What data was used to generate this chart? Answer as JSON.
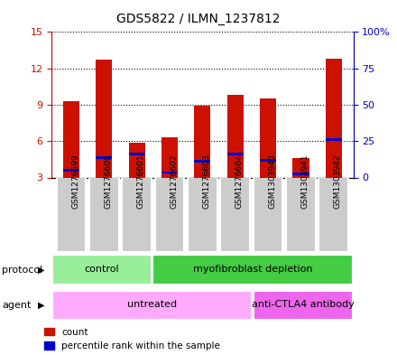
{
  "title": "GDS5822 / ILMN_1237812",
  "samples": [
    "GSM1276599",
    "GSM1276600",
    "GSM1276601",
    "GSM1276602",
    "GSM1276603",
    "GSM1276604",
    "GSM1303940",
    "GSM1303941",
    "GSM1303942"
  ],
  "count_values": [
    9.3,
    12.7,
    5.9,
    6.3,
    8.9,
    9.8,
    9.5,
    4.6,
    12.8
  ],
  "percentile_values": [
    3.5,
    4.5,
    4.8,
    3.3,
    4.2,
    4.8,
    4.3,
    3.2,
    6.0
  ],
  "bar_bottom": 3.0,
  "ylim_left": [
    3,
    15
  ],
  "yticks_left": [
    3,
    6,
    9,
    12,
    15
  ],
  "ylim_right": [
    0,
    100
  ],
  "yticks_right": [
    0,
    25,
    50,
    75,
    100
  ],
  "ytick_labels_right": [
    "0",
    "25",
    "50",
    "75",
    "100%"
  ],
  "count_color": "#cc1100",
  "percentile_color": "#0000cc",
  "left_axis_color": "#cc1100",
  "right_axis_color": "#0000cc",
  "protocol_labels": [
    {
      "label": "control",
      "start": 0,
      "end": 3,
      "color": "#99ee99"
    },
    {
      "label": "myofibroblast depletion",
      "start": 3,
      "end": 9,
      "color": "#44cc44"
    }
  ],
  "agent_labels": [
    {
      "label": "untreated",
      "start": 0,
      "end": 6,
      "color": "#ffaaff"
    },
    {
      "label": "anti-CTLA4 antibody",
      "start": 6,
      "end": 9,
      "color": "#ee66ee"
    }
  ],
  "protocol_row_label": "protocol",
  "agent_row_label": "agent",
  "legend_count_label": "count",
  "legend_percentile_label": "percentile rank within the sample",
  "bar_width": 0.5,
  "sample_bg_color": "#cccccc",
  "sample_bg_edge_color": "#ffffff"
}
